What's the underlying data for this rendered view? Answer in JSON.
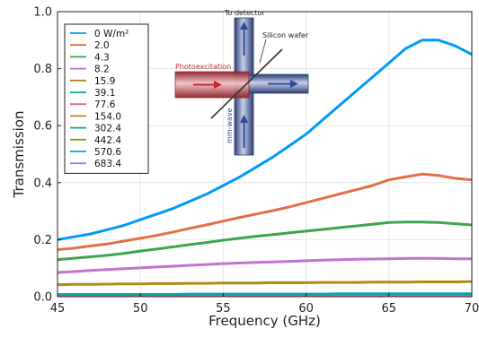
{
  "chart_data": {
    "type": "line",
    "title": "",
    "xlabel": "Frequency (GHz)",
    "ylabel": "Transmission",
    "xlim": [
      45,
      70
    ],
    "ylim": [
      0,
      1.0
    ],
    "xticks": [
      45,
      50,
      55,
      60,
      65,
      70
    ],
    "yticks": [
      0.0,
      0.2,
      0.4,
      0.6,
      0.8,
      1.0
    ],
    "xtick_labels": [
      "45",
      "50",
      "55",
      "60",
      "65",
      "70"
    ],
    "ytick_labels": [
      "0.0",
      "0.2",
      "0.4",
      "0.6",
      "0.8",
      "1.0"
    ],
    "grid": true,
    "legend_position": "top-left",
    "x": [
      45,
      46,
      47,
      48,
      49,
      50,
      51,
      52,
      53,
      54,
      55,
      56,
      57,
      58,
      59,
      60,
      61,
      62,
      63,
      64,
      65,
      66,
      67,
      68,
      69,
      70
    ],
    "series": [
      {
        "name": "0 W/m²",
        "color": "#009AFA",
        "values": [
          0.2,
          0.21,
          0.22,
          0.235,
          0.25,
          0.27,
          0.29,
          0.31,
          0.335,
          0.36,
          0.39,
          0.42,
          0.455,
          0.49,
          0.53,
          0.57,
          0.62,
          0.67,
          0.72,
          0.77,
          0.82,
          0.87,
          0.9,
          0.9,
          0.88,
          0.85
        ]
      },
      {
        "name": "2.0",
        "color": "#E36F47",
        "values": [
          0.165,
          0.17,
          0.178,
          0.185,
          0.195,
          0.205,
          0.215,
          0.227,
          0.24,
          0.252,
          0.265,
          0.278,
          0.29,
          0.302,
          0.315,
          0.33,
          0.345,
          0.36,
          0.375,
          0.39,
          0.41,
          0.42,
          0.43,
          0.425,
          0.415,
          0.41
        ]
      },
      {
        "name": "4.3",
        "color": "#3EA44E",
        "values": [
          0.13,
          0.135,
          0.14,
          0.145,
          0.152,
          0.16,
          0.167,
          0.175,
          0.183,
          0.19,
          0.198,
          0.205,
          0.212,
          0.218,
          0.224,
          0.23,
          0.236,
          0.242,
          0.248,
          0.254,
          0.26,
          0.262,
          0.262,
          0.26,
          0.256,
          0.252
        ]
      },
      {
        "name": "8.2",
        "color": "#C371D2",
        "values": [
          0.085,
          0.088,
          0.092,
          0.095,
          0.098,
          0.101,
          0.104,
          0.107,
          0.11,
          0.113,
          0.116,
          0.118,
          0.12,
          0.122,
          0.124,
          0.126,
          0.128,
          0.13,
          0.131,
          0.132,
          0.133,
          0.134,
          0.135,
          0.134,
          0.133,
          0.133
        ]
      },
      {
        "name": "15.9",
        "color": "#AC8D18",
        "values": [
          0.042,
          0.043,
          0.043,
          0.044,
          0.045,
          0.045,
          0.046,
          0.046,
          0.047,
          0.047,
          0.048,
          0.048,
          0.048,
          0.049,
          0.049,
          0.049,
          0.05,
          0.05,
          0.05,
          0.051,
          0.051,
          0.051,
          0.052,
          0.052,
          0.052,
          0.053
        ]
      },
      {
        "name": "39.1",
        "color": "#00A9AD",
        "values": [
          0.008,
          0.008,
          0.008,
          0.008,
          0.008,
          0.008,
          0.008,
          0.008,
          0.009,
          0.009,
          0.009,
          0.009,
          0.009,
          0.009,
          0.009,
          0.009,
          0.009,
          0.01,
          0.01,
          0.01,
          0.01,
          0.01,
          0.01,
          0.01,
          0.01,
          0.01
        ]
      },
      {
        "name": "77.6",
        "color": "#ED5E93",
        "values": [
          0.004,
          0.004,
          0.004,
          0.004,
          0.004,
          0.004,
          0.004,
          0.004,
          0.004,
          0.004,
          0.004,
          0.004,
          0.004,
          0.004,
          0.004,
          0.004,
          0.004,
          0.004,
          0.004,
          0.004,
          0.004,
          0.004,
          0.004,
          0.004,
          0.004,
          0.004
        ]
      },
      {
        "name": "154.0",
        "color": "#C68225",
        "values": [
          0.003,
          0.003,
          0.003,
          0.003,
          0.003,
          0.003,
          0.003,
          0.003,
          0.003,
          0.003,
          0.003,
          0.003,
          0.003,
          0.003,
          0.003,
          0.003,
          0.003,
          0.003,
          0.003,
          0.003,
          0.003,
          0.003,
          0.003,
          0.003,
          0.003,
          0.003
        ]
      },
      {
        "name": "302.4",
        "color": "#00A98D",
        "values": [
          0.002,
          0.002,
          0.002,
          0.002,
          0.002,
          0.002,
          0.002,
          0.002,
          0.002,
          0.002,
          0.002,
          0.002,
          0.002,
          0.002,
          0.002,
          0.002,
          0.002,
          0.002,
          0.002,
          0.002,
          0.002,
          0.002,
          0.002,
          0.002,
          0.002,
          0.002
        ]
      },
      {
        "name": "442.4",
        "color": "#8E971D",
        "values": [
          0.002,
          0.002,
          0.002,
          0.002,
          0.002,
          0.002,
          0.002,
          0.002,
          0.002,
          0.002,
          0.002,
          0.002,
          0.002,
          0.002,
          0.002,
          0.002,
          0.002,
          0.002,
          0.002,
          0.002,
          0.002,
          0.002,
          0.002,
          0.002,
          0.002,
          0.002
        ]
      },
      {
        "name": "570.6",
        "color": "#00A8CB",
        "values": [
          0.001,
          0.001,
          0.001,
          0.001,
          0.001,
          0.001,
          0.001,
          0.001,
          0.001,
          0.001,
          0.001,
          0.001,
          0.001,
          0.001,
          0.001,
          0.001,
          0.001,
          0.001,
          0.001,
          0.001,
          0.001,
          0.001,
          0.001,
          0.001,
          0.001,
          0.001
        ]
      },
      {
        "name": "683.4",
        "color": "#9B7FE9",
        "values": [
          0.001,
          0.001,
          0.001,
          0.001,
          0.001,
          0.001,
          0.001,
          0.001,
          0.001,
          0.001,
          0.001,
          0.001,
          0.001,
          0.001,
          0.001,
          0.001,
          0.001,
          0.001,
          0.001,
          0.001,
          0.001,
          0.001,
          0.001,
          0.001,
          0.001,
          0.001
        ]
      }
    ],
    "inset": {
      "label_detector": "To detector",
      "label_wafer": "Silicon wafer",
      "label_photo": "Photoexcitation",
      "label_mmwave": "mm-wave",
      "waveguide_color": "#7E8EB8",
      "photo_color": "#B5474C"
    }
  }
}
